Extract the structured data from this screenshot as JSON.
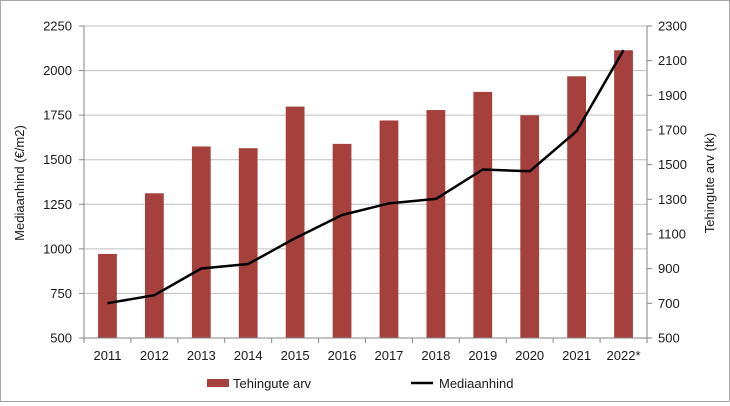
{
  "chart_data": {
    "type": "bar+line",
    "categories": [
      "2011",
      "2012",
      "2013",
      "2014",
      "2015",
      "2016",
      "2017",
      "2018",
      "2019",
      "2020",
      "2021",
      "2022*"
    ],
    "series": [
      {
        "name": "Tehingute arv",
        "kind": "bar",
        "axis": "right",
        "color": "#a5403d",
        "values": [
          985,
          1335,
          1605,
          1595,
          1835,
          1620,
          1755,
          1815,
          1920,
          1785,
          2010,
          2160
        ]
      },
      {
        "name": "Mediaanhind",
        "kind": "line",
        "axis": "left",
        "color": "#000000",
        "values": [
          695,
          740,
          890,
          915,
          1060,
          1190,
          1255,
          1280,
          1445,
          1435,
          1660,
          2115
        ]
      }
    ],
    "ylabel": "Mediaanhind (€/m2)",
    "ylim": [
      500,
      2250
    ],
    "yticks": [
      500,
      750,
      1000,
      1250,
      1500,
      1750,
      2000,
      2250
    ],
    "y2label": "Tehingute arv (tk)",
    "y2lim": [
      500,
      2300
    ],
    "y2ticks": [
      500,
      700,
      900,
      1100,
      1300,
      1500,
      1700,
      1900,
      2100,
      2300
    ],
    "grid": true,
    "legend_position": "bottom"
  }
}
